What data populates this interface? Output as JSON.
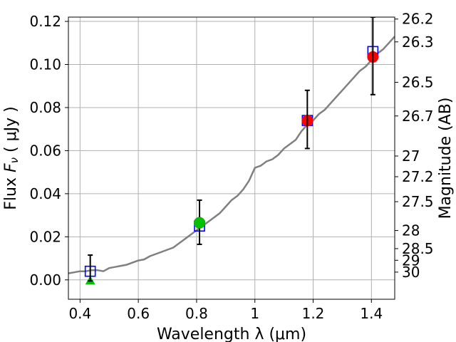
{
  "chart_data": {
    "type": "scatter",
    "xlabel": "Wavelength  λ (μm)",
    "ylabel": "Flux  F_ν  ( μJy )",
    "ylabel_right": "Magnitude (AB)",
    "xlim": [
      0.36,
      1.48
    ],
    "ylim": [
      -0.009,
      0.122
    ],
    "grid": true,
    "x_ticks": [
      {
        "value": 0.4,
        "label": "0.4"
      },
      {
        "value": 0.6,
        "label": "0.6"
      },
      {
        "value": 0.8,
        "label": "0.8"
      },
      {
        "value": 1.0,
        "label": "1"
      },
      {
        "value": 1.2,
        "label": "1.2"
      },
      {
        "value": 1.4,
        "label": "1.4"
      }
    ],
    "y_ticks": [
      {
        "value": 0.0,
        "label": "0.00"
      },
      {
        "value": 0.02,
        "label": "0.02"
      },
      {
        "value": 0.04,
        "label": "0.04"
      },
      {
        "value": 0.06,
        "label": "0.06"
      },
      {
        "value": 0.08,
        "label": "0.08"
      },
      {
        "value": 0.1,
        "label": "0.10"
      },
      {
        "value": 0.12,
        "label": "0.12"
      }
    ],
    "right_ticks": [
      {
        "flux": 0.1211,
        "label": "26.2"
      },
      {
        "flux": 0.1105,
        "label": "26.3"
      },
      {
        "flux": 0.0917,
        "label": "26.5"
      },
      {
        "flux": 0.0761,
        "label": "26.7"
      },
      {
        "flux": 0.0575,
        "label": "27"
      },
      {
        "flux": 0.0479,
        "label": "27.2"
      },
      {
        "flux": 0.0363,
        "label": "27.5"
      },
      {
        "flux": 0.0229,
        "label": "28"
      },
      {
        "flux": 0.0145,
        "label": "28.5"
      },
      {
        "flux": 0.0091,
        "label": "29"
      },
      {
        "flux": 0.0036,
        "label": "30"
      }
    ],
    "colors": {
      "sed": "#808080",
      "model": "#0000ff",
      "dropout": "#00c000",
      "observed": "#ff0000",
      "errorbar": "#000000",
      "grid": "#b0b0b0"
    },
    "sed_model": {
      "x": [
        0.36,
        0.38,
        0.4,
        0.42,
        0.44,
        0.46,
        0.48,
        0.5,
        0.52,
        0.54,
        0.56,
        0.58,
        0.6,
        0.62,
        0.64,
        0.66,
        0.68,
        0.7,
        0.72,
        0.74,
        0.76,
        0.78,
        0.8,
        0.82,
        0.84,
        0.86,
        0.88,
        0.9,
        0.92,
        0.94,
        0.96,
        0.98,
        1.0,
        1.02,
        1.04,
        1.06,
        1.08,
        1.1,
        1.12,
        1.14,
        1.16,
        1.18,
        1.2,
        1.22,
        1.24,
        1.26,
        1.28,
        1.3,
        1.32,
        1.34,
        1.36,
        1.38,
        1.4,
        1.42,
        1.44,
        1.46,
        1.48
      ],
      "y": [
        0.003,
        0.0035,
        0.004,
        0.004,
        0.0045,
        0.0045,
        0.004,
        0.0055,
        0.006,
        0.0065,
        0.007,
        0.008,
        0.009,
        0.0095,
        0.011,
        0.012,
        0.013,
        0.014,
        0.015,
        0.017,
        0.019,
        0.021,
        0.023,
        0.025,
        0.027,
        0.029,
        0.031,
        0.034,
        0.037,
        0.039,
        0.042,
        0.046,
        0.052,
        0.053,
        0.055,
        0.056,
        0.058,
        0.061,
        0.063,
        0.065,
        0.069,
        0.072,
        0.074,
        0.077,
        0.079,
        0.082,
        0.085,
        0.088,
        0.091,
        0.094,
        0.097,
        0.099,
        0.102,
        0.105,
        0.107,
        0.11,
        0.113
      ]
    },
    "series": [
      {
        "marker": "open-square",
        "x": [
          0.435,
          0.81,
          1.18,
          1.405
        ],
        "y": [
          0.004,
          0.025,
          0.074,
          0.106
        ]
      },
      {
        "marker": "triangle",
        "x": [
          0.435
        ],
        "y": [
          -0.0005
        ]
      },
      {
        "marker": "circle",
        "x": [
          0.81,
          1.18,
          1.405
        ],
        "y": [
          0.0265,
          0.074,
          0.1035
        ],
        "err_low": [
          0.0165,
          0.061,
          0.086
        ],
        "err_high": [
          0.037,
          0.088,
          0.122
        ]
      },
      {
        "marker": "errorbar",
        "x": [
          0.435
        ],
        "y": [
          0.004
        ],
        "err_low": [
          -0.0005
        ],
        "err_high": [
          0.0115
        ]
      }
    ]
  }
}
